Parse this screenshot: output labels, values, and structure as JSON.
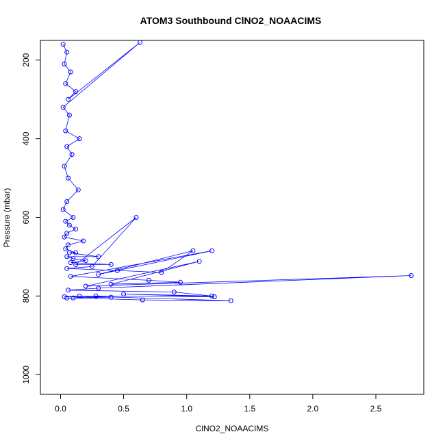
{
  "chart_data": {
    "type": "scatter",
    "title": "ATOM3 Southbound ClNO2_NOAACIMS",
    "xlabel": "ClNO2_NOAACIMS",
    "ylabel": "Pressure (mbar)",
    "xlim": [
      -0.16,
      2.88
    ],
    "ylim": [
      1050,
      150
    ],
    "y_reversed": true,
    "x_ticks": [
      "0.0",
      "0.5",
      "1.0",
      "1.5",
      "2.0",
      "2.5"
    ],
    "x_tick_values": [
      0,
      0.5,
      1.0,
      1.5,
      2.0,
      2.5
    ],
    "y_ticks": [
      "200",
      "400",
      "600",
      "800",
      "1000"
    ],
    "y_tick_values": [
      200,
      400,
      600,
      800,
      1000
    ],
    "series_color": "#0000ff",
    "marker": "open-circle",
    "connected": true,
    "series": [
      {
        "x": [
          0.02,
          0.05,
          0.03,
          0.08,
          0.04,
          0.12,
          0.06,
          0.63,
          0.02,
          0.07,
          0.04,
          0.15,
          0.05,
          0.09,
          0.03,
          0.06,
          0.14,
          0.05,
          0.02,
          0.1,
          0.04,
          0.07,
          0.12,
          0.05,
          0.03,
          0.18,
          0.06,
          0.04,
          0.12,
          0.07,
          0.3,
          0.05,
          0.1,
          0.2,
          0.08,
          0.4,
          0.12,
          0.6,
          0.25,
          0.05,
          0.45,
          0.8,
          1.05,
          0.3,
          1.2,
          0.08,
          0.7,
          0.95,
          0.4,
          1.1,
          0.2,
          2.78,
          0.3,
          0.06,
          0.9,
          1.2,
          0.5,
          1.22,
          0.28,
          0.1,
          0.65,
          1.35,
          0.15,
          0.03,
          0.4,
          0.05
        ],
        "y": [
          160,
          180,
          210,
          230,
          260,
          280,
          300,
          155,
          320,
          340,
          380,
          400,
          420,
          440,
          470,
          500,
          530,
          560,
          580,
          600,
          610,
          620,
          630,
          640,
          650,
          660,
          670,
          680,
          690,
          690,
          700,
          700,
          705,
          710,
          715,
          720,
          720,
          600,
          725,
          730,
          735,
          740,
          685,
          745,
          685,
          750,
          760,
          765,
          770,
          712,
          775,
          748,
          780,
          785,
          790,
          800,
          795,
          802,
          800,
          805,
          810,
          812,
          800,
          802,
          803,
          805
        ]
      }
    ]
  }
}
